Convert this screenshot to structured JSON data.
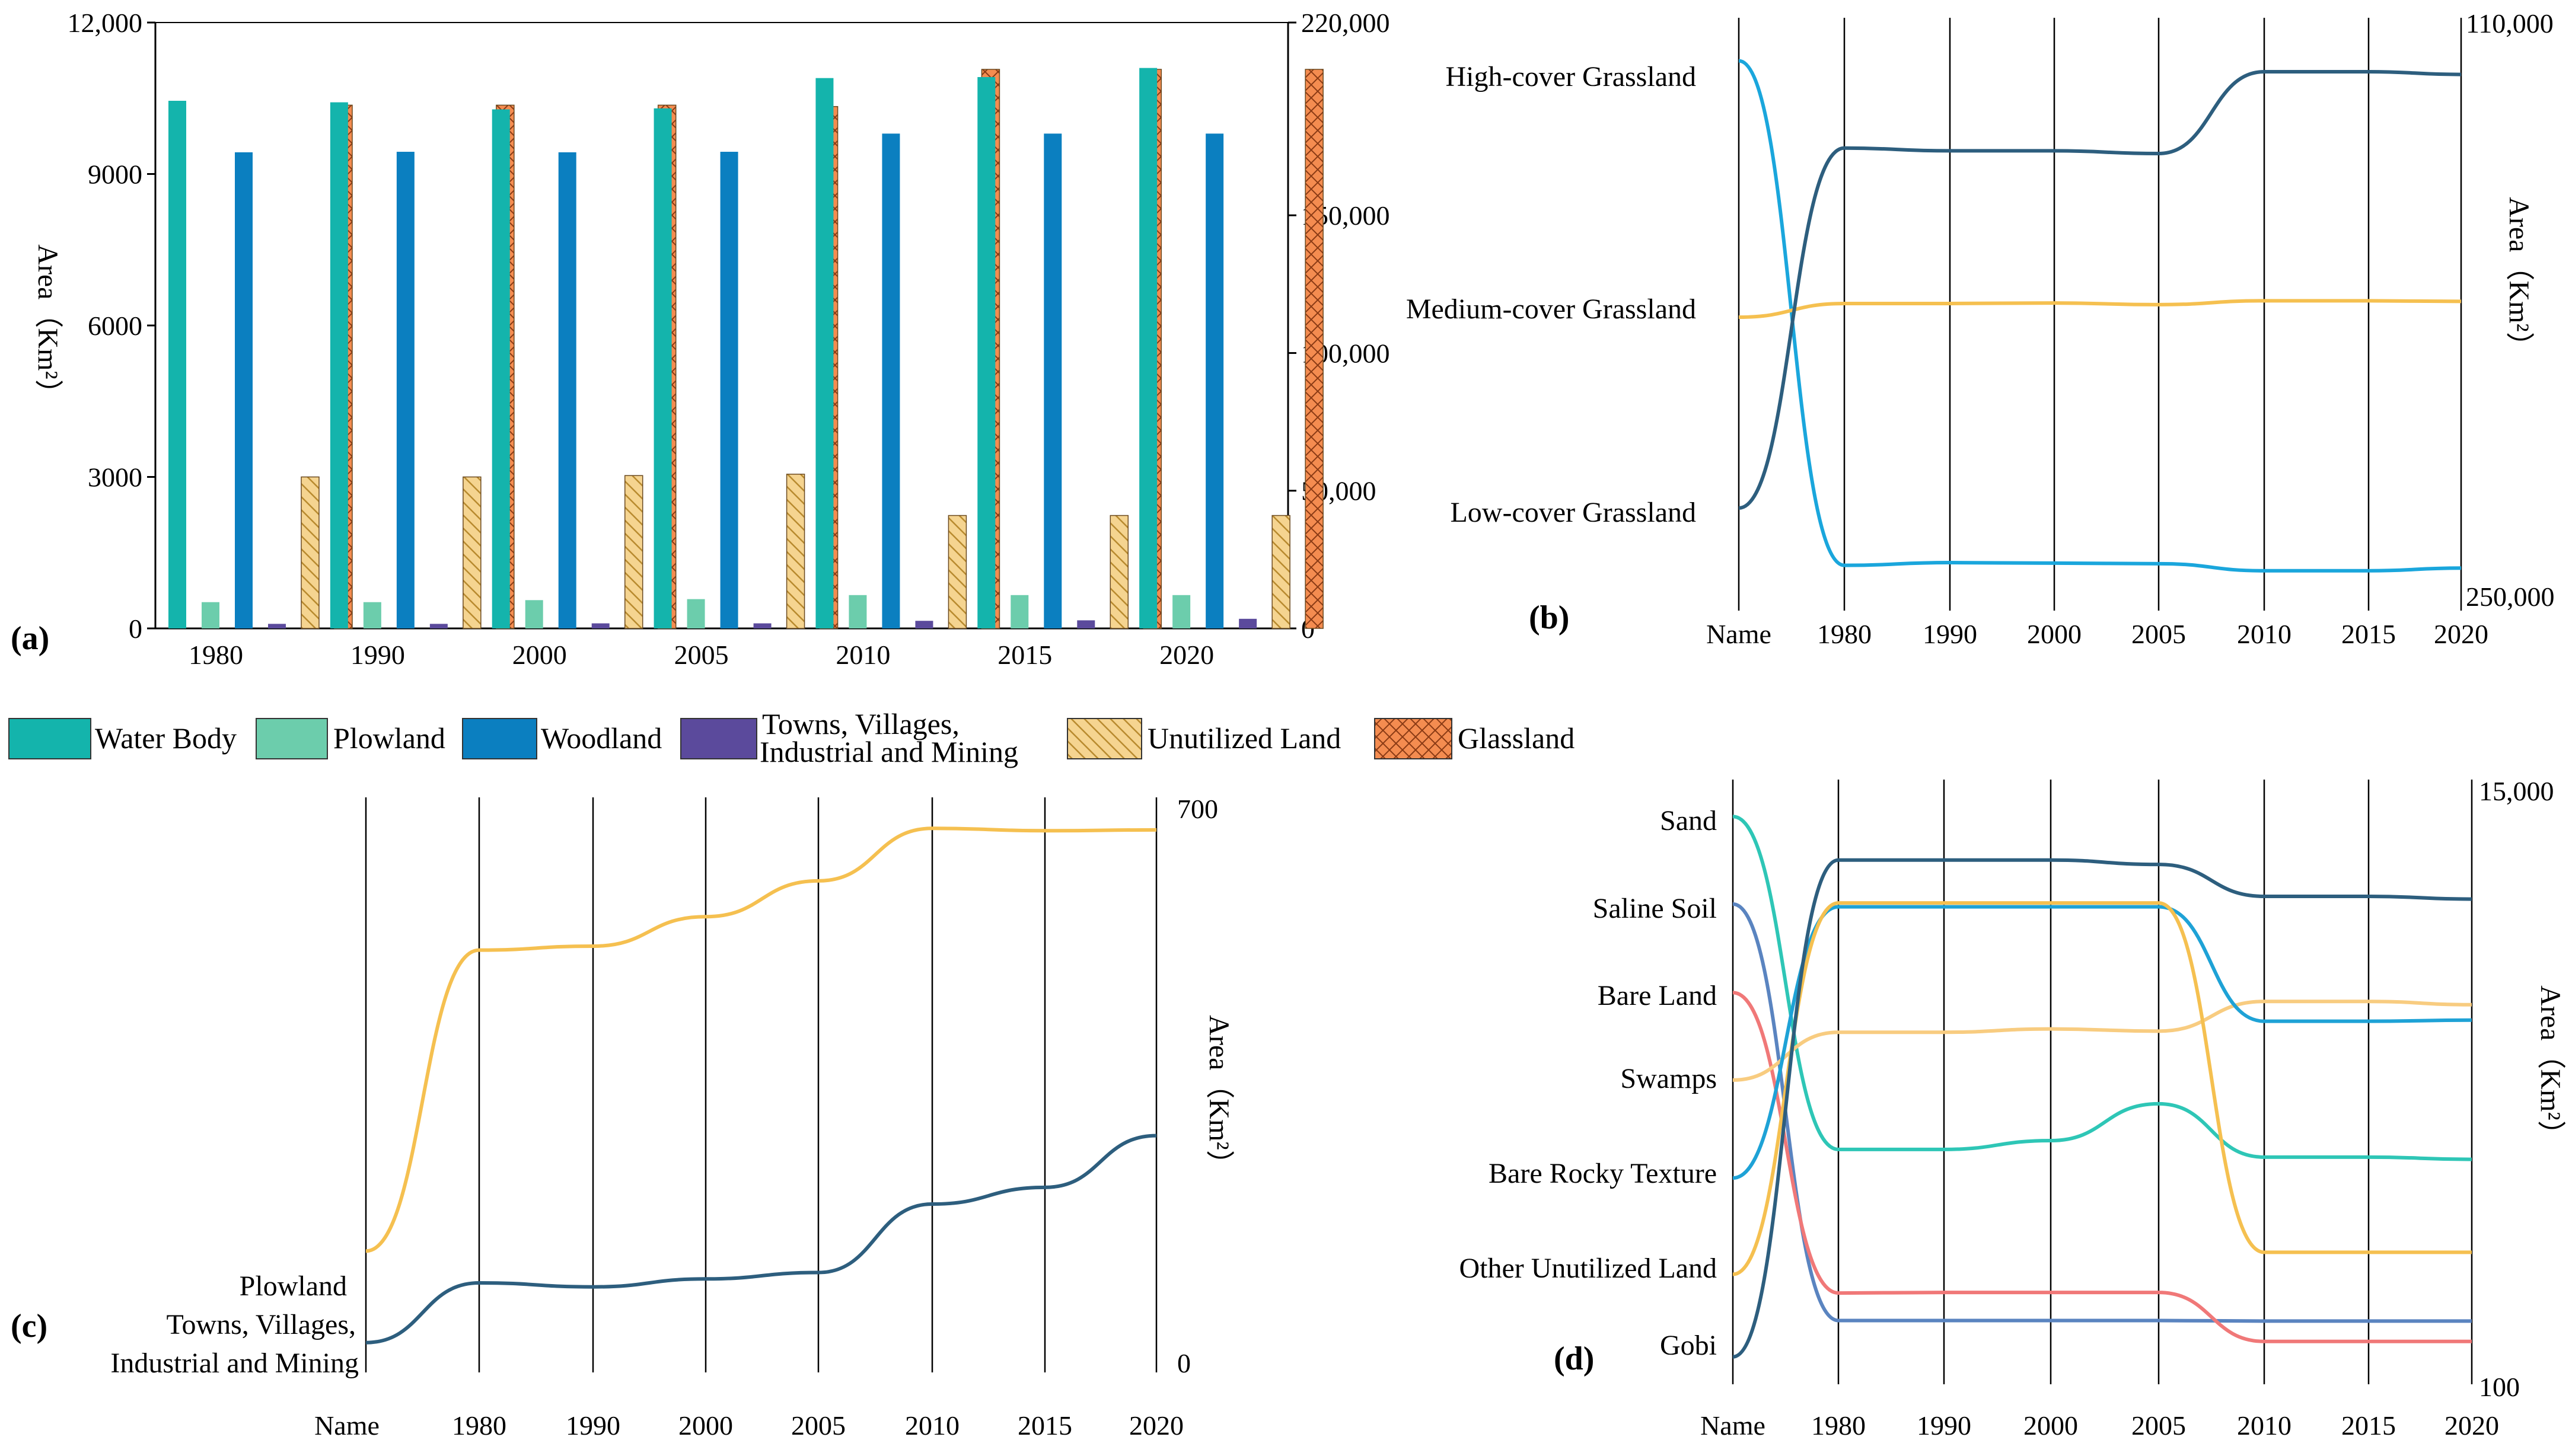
{
  "legend": [
    {
      "label": "Water Body",
      "color": "#14b4ac",
      "pattern": "solid"
    },
    {
      "label": "Plowland",
      "color": "#6ccdac",
      "pattern": "solid"
    },
    {
      "label": "Woodland",
      "color": "#0b7fc0",
      "pattern": "solid"
    },
    {
      "label": "Towns, Villages,\nIndustrial and Mining",
      "color": "#5b4a9c",
      "pattern": "solid"
    },
    {
      "label": "Unutilized Land",
      "color": "#f5d490",
      "pattern": "hatch"
    },
    {
      "label": "Glassland",
      "color": "#f48c50",
      "pattern": "crosshatch"
    }
  ],
  "chart_data": [
    {
      "panel": "(a)",
      "type": "bar",
      "categories": [
        "1980",
        "1990",
        "2000",
        "2005",
        "2010",
        "2015",
        "2020"
      ],
      "ylabel": "Area（Km²）",
      "ylim": [
        0,
        12000
      ],
      "yticks": [
        "0",
        "3000",
        "6000",
        "9000",
        "12,000"
      ],
      "y2lim": [
        0,
        220000
      ],
      "y2ticks": [
        "0",
        "50,000",
        "100,000",
        "150,000",
        "220,000"
      ],
      "series": [
        {
          "name": "Water Body",
          "axis": "left",
          "values": [
            10450,
            10420,
            10280,
            10300,
            10900,
            10920,
            11100
          ]
        },
        {
          "name": "Plowland",
          "axis": "left",
          "values": [
            520,
            520,
            560,
            580,
            660,
            660,
            660
          ]
        },
        {
          "name": "Woodland",
          "axis": "left",
          "values": [
            9430,
            9440,
            9430,
            9440,
            9800,
            9800,
            9800
          ]
        },
        {
          "name": "Towns, Villages, Industrial and Mining",
          "axis": "left",
          "values": [
            90,
            90,
            100,
            100,
            150,
            160,
            190
          ]
        },
        {
          "name": "Unutilized Land",
          "axis": "right",
          "values": [
            55000,
            55000,
            55500,
            56000,
            41000,
            41000,
            41000
          ]
        },
        {
          "name": "Glassland",
          "axis": "right",
          "values": [
            190000,
            190000,
            190000,
            189500,
            203000,
            203000,
            203000
          ]
        }
      ]
    },
    {
      "panel": "(b)",
      "type": "line",
      "x": [
        "Name",
        "1980",
        "1990",
        "2000",
        "2005",
        "2010",
        "2015",
        "2020"
      ],
      "ylabel": "Area（Km²）",
      "ytop": "110,000",
      "ybottom": "250,000",
      "series": [
        {
          "name": "High-cover Grassland",
          "color": "#1aa6dc",
          "values": [
            0.03,
            0.955,
            0.95,
            0.951,
            0.952,
            0.965,
            0.965,
            0.96
          ]
        },
        {
          "name": "Medium-cover Grassland",
          "color": "#f5c050",
          "values": [
            0.5,
            0.475,
            0.475,
            0.474,
            0.477,
            0.47,
            0.47,
            0.471
          ]
        },
        {
          "name": "Low-cover Grassland",
          "color": "#2d5e7e",
          "values": [
            0.85,
            0.19,
            0.195,
            0.195,
            0.2,
            0.05,
            0.05,
            0.055
          ]
        }
      ],
      "yrange": [
        0,
        1
      ]
    },
    {
      "panel": "(c)",
      "type": "line",
      "x": [
        "Name",
        "1980",
        "1990",
        "2000",
        "2005",
        "2010",
        "2015",
        "2020"
      ],
      "ylabel": "Area（Km²）",
      "ylim": [
        0,
        700
      ],
      "yticks": [
        "0",
        "700"
      ],
      "series": [
        {
          "name": "Plowland",
          "color": "#f5c050",
          "values": [
            145,
            523,
            528,
            565,
            610,
            676,
            673,
            674
          ]
        },
        {
          "name": "Towns, Villages, Industrial and Mining",
          "color": "#2d5e7e",
          "values": [
            30,
            105,
            100,
            110,
            118,
            204,
            225,
            290
          ]
        }
      ]
    },
    {
      "panel": "(d)",
      "type": "line",
      "x": [
        "Name",
        "1980",
        "1990",
        "2000",
        "2005",
        "2010",
        "2015",
        "2020"
      ],
      "ylabel": "Area（Km²）",
      "ytop": "15,000",
      "ybottom": "100",
      "yrange": [
        0,
        1
      ],
      "series": [
        {
          "name": "Sand",
          "color": "#2ec6b6",
          "values": [
            0.008,
            0.613,
            0.613,
            0.597,
            0.53,
            0.627,
            0.627,
            0.631
          ]
        },
        {
          "name": "Saline Soil",
          "color": "#5a84c0",
          "values": [
            0.167,
            0.924,
            0.924,
            0.924,
            0.924,
            0.925,
            0.925,
            0.925
          ]
        },
        {
          "name": "Bare Land",
          "color": "#f07878",
          "values": [
            0.328,
            0.874,
            0.873,
            0.873,
            0.873,
            0.962,
            0.962,
            0.962
          ]
        },
        {
          "name": "Swamps",
          "color": "#f8cc80",
          "values": [
            0.487,
            0.4,
            0.4,
            0.394,
            0.398,
            0.344,
            0.344,
            0.35
          ]
        },
        {
          "name": "Bare Rocky Texture",
          "color": "#1ea2d6",
          "values": [
            0.665,
            0.172,
            0.172,
            0.172,
            0.172,
            0.38,
            0.38,
            0.378
          ]
        },
        {
          "name": "Other Unutilized Land",
          "color": "#f5c050",
          "values": [
            0.84,
            0.165,
            0.165,
            0.165,
            0.165,
            0.8,
            0.8,
            0.8
          ]
        },
        {
          "name": "Gobi",
          "color": "#2d5e7e",
          "values": [
            0.99,
            0.087,
            0.087,
            0.087,
            0.095,
            0.153,
            0.153,
            0.158
          ]
        }
      ]
    }
  ]
}
